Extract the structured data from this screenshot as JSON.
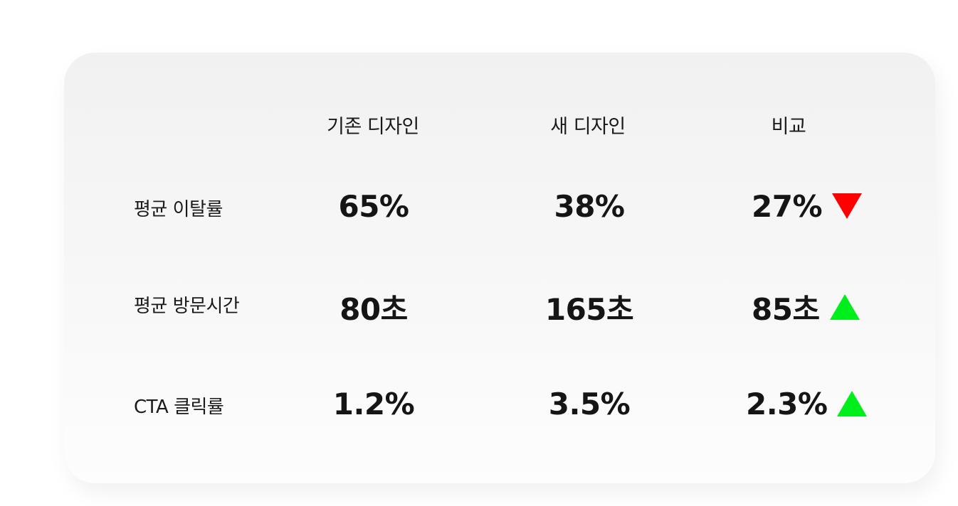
{
  "columns": {
    "old": "기존 디자인",
    "new": "새 디자인",
    "compare": "비교"
  },
  "rows": [
    {
      "label": "평균 이탈률",
      "old": "65%",
      "new": "38%",
      "diff": "27%",
      "trend": "down"
    },
    {
      "label": "평균 방문시간",
      "old": "80초",
      "new": "165초",
      "diff": "85초",
      "trend": "up"
    },
    {
      "label": "CTA 클릭률",
      "old": "1.2%",
      "new": "3.5%",
      "diff": "2.3%",
      "trend": "up"
    }
  ],
  "colors": {
    "down": "#ff0000",
    "up": "#00ee1c",
    "text": "#151515"
  }
}
